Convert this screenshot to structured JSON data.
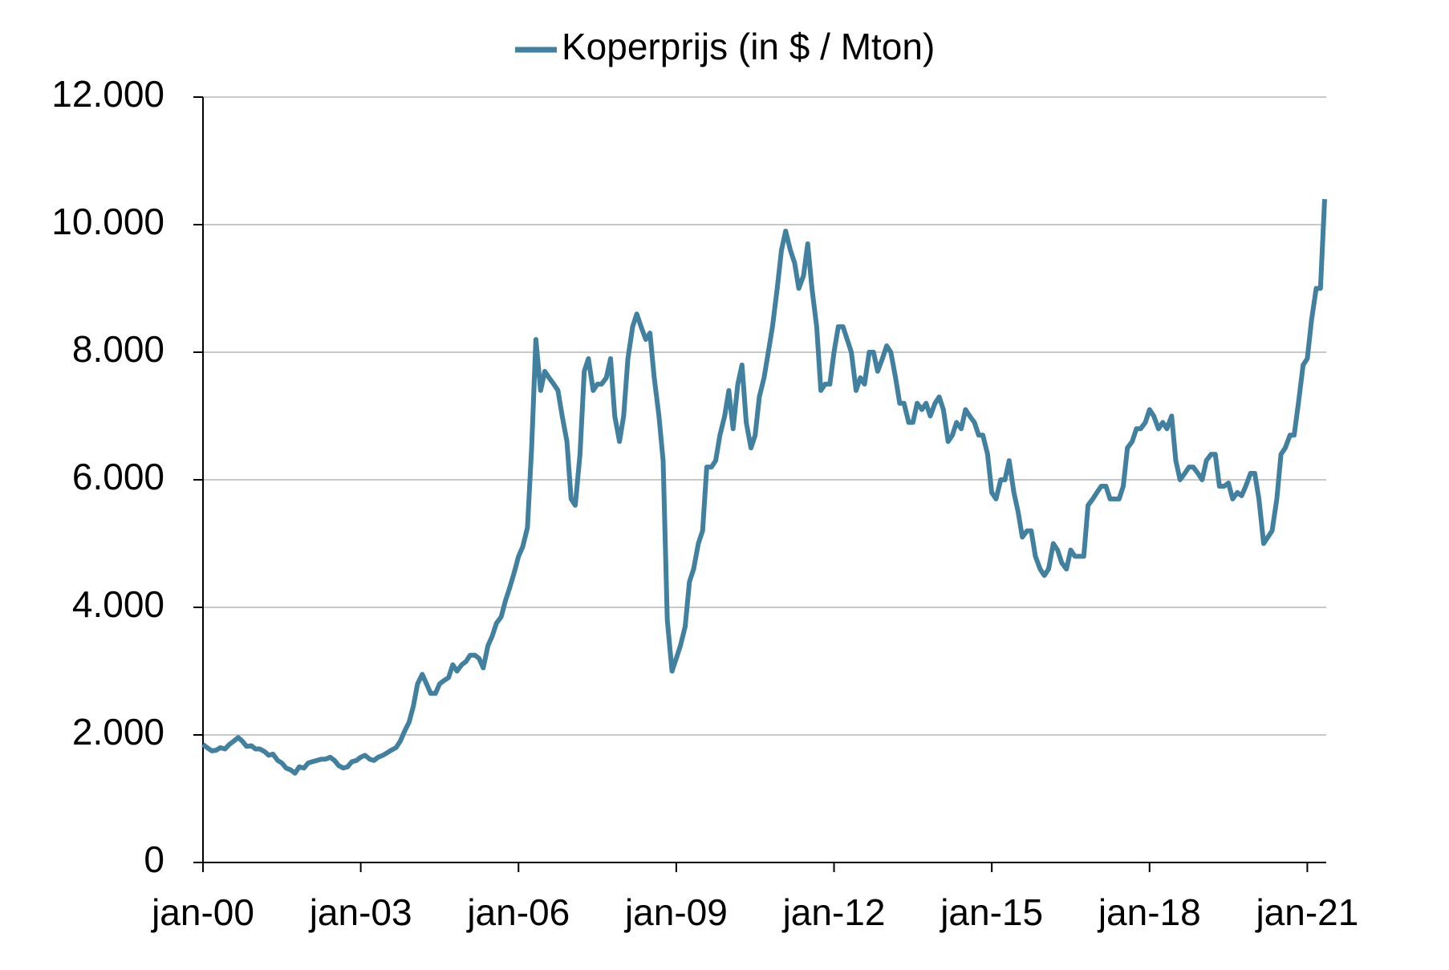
{
  "chart_data": {
    "type": "line",
    "x": [
      2000.0,
      2000.08,
      2000.17,
      2000.25,
      2000.33,
      2000.42,
      2000.5,
      2000.58,
      2000.67,
      2000.75,
      2000.83,
      2000.92,
      2001.0,
      2001.08,
      2001.17,
      2001.25,
      2001.33,
      2001.42,
      2001.5,
      2001.58,
      2001.67,
      2001.75,
      2001.83,
      2001.92,
      2002.0,
      2002.08,
      2002.17,
      2002.25,
      2002.33,
      2002.42,
      2002.5,
      2002.58,
      2002.67,
      2002.75,
      2002.83,
      2002.92,
      2003.0,
      2003.08,
      2003.17,
      2003.25,
      2003.33,
      2003.42,
      2003.5,
      2003.58,
      2003.67,
      2003.75,
      2003.83,
      2003.92,
      2004.0,
      2004.08,
      2004.17,
      2004.25,
      2004.33,
      2004.42,
      2004.5,
      2004.58,
      2004.67,
      2004.75,
      2004.83,
      2004.92,
      2005.0,
      2005.08,
      2005.17,
      2005.25,
      2005.33,
      2005.42,
      2005.5,
      2005.58,
      2005.67,
      2005.75,
      2005.83,
      2005.92,
      2006.0,
      2006.08,
      2006.17,
      2006.25,
      2006.33,
      2006.42,
      2006.5,
      2006.58,
      2006.67,
      2006.75,
      2006.83,
      2006.92,
      2007.0,
      2007.08,
      2007.17,
      2007.25,
      2007.33,
      2007.42,
      2007.5,
      2007.58,
      2007.67,
      2007.75,
      2007.83,
      2007.92,
      2008.0,
      2008.08,
      2008.17,
      2008.25,
      2008.33,
      2008.42,
      2008.5,
      2008.58,
      2008.67,
      2008.75,
      2008.83,
      2008.92,
      2009.0,
      2009.08,
      2009.17,
      2009.25,
      2009.33,
      2009.42,
      2009.5,
      2009.58,
      2009.67,
      2009.75,
      2009.83,
      2009.92,
      2010.0,
      2010.08,
      2010.17,
      2010.25,
      2010.33,
      2010.42,
      2010.5,
      2010.58,
      2010.67,
      2010.75,
      2010.83,
      2010.92,
      2011.0,
      2011.08,
      2011.17,
      2011.25,
      2011.33,
      2011.42,
      2011.5,
      2011.58,
      2011.67,
      2011.75,
      2011.83,
      2011.92,
      2012.0,
      2012.08,
      2012.17,
      2012.25,
      2012.33,
      2012.42,
      2012.5,
      2012.58,
      2012.67,
      2012.75,
      2012.83,
      2012.92,
      2013.0,
      2013.08,
      2013.17,
      2013.25,
      2013.33,
      2013.42,
      2013.5,
      2013.58,
      2013.67,
      2013.75,
      2013.83,
      2013.92,
      2014.0,
      2014.08,
      2014.17,
      2014.25,
      2014.33,
      2014.42,
      2014.5,
      2014.58,
      2014.67,
      2014.75,
      2014.83,
      2014.92,
      2015.0,
      2015.08,
      2015.17,
      2015.25,
      2015.33,
      2015.42,
      2015.5,
      2015.58,
      2015.67,
      2015.75,
      2015.83,
      2015.92,
      2016.0,
      2016.08,
      2016.17,
      2016.25,
      2016.33,
      2016.42,
      2016.5,
      2016.58,
      2016.67,
      2016.75,
      2016.83,
      2016.92,
      2017.0,
      2017.08,
      2017.17,
      2017.25,
      2017.33,
      2017.42,
      2017.5,
      2017.58,
      2017.67,
      2017.75,
      2017.83,
      2017.92,
      2018.0,
      2018.08,
      2018.17,
      2018.25,
      2018.33,
      2018.42,
      2018.5,
      2018.58,
      2018.67,
      2018.75,
      2018.83,
      2018.92,
      2019.0,
      2019.08,
      2019.17,
      2019.25,
      2019.33,
      2019.42,
      2019.5,
      2019.58,
      2019.67,
      2019.75,
      2019.83,
      2019.92,
      2020.0,
      2020.08,
      2020.17,
      2020.25,
      2020.33,
      2020.42,
      2020.5,
      2020.58,
      2020.67,
      2020.75,
      2020.83,
      2020.92,
      2021.0,
      2021.08,
      2021.17,
      2021.25,
      2021.33
    ],
    "series": [
      {
        "name": "Koperprijs (in $ / Mton)",
        "color": "#41809f",
        "values": [
          1850,
          1800,
          1750,
          1760,
          1800,
          1780,
          1850,
          1900,
          1960,
          1900,
          1820,
          1830,
          1780,
          1780,
          1740,
          1680,
          1700,
          1600,
          1560,
          1480,
          1450,
          1400,
          1500,
          1480,
          1560,
          1580,
          1600,
          1620,
          1620,
          1650,
          1600,
          1520,
          1480,
          1500,
          1580,
          1600,
          1650,
          1680,
          1620,
          1600,
          1650,
          1680,
          1720,
          1760,
          1800,
          1900,
          2050,
          2200,
          2450,
          2800,
          2950,
          2800,
          2650,
          2650,
          2800,
          2850,
          2900,
          3100,
          3000,
          3100,
          3150,
          3250,
          3250,
          3200,
          3050,
          3400,
          3550,
          3750,
          3850,
          4100,
          4300,
          4550,
          4800,
          4950,
          5250,
          6500,
          8200,
          7400,
          7700,
          7600,
          7500,
          7400,
          7000,
          6600,
          5700,
          5600,
          6400,
          7700,
          7900,
          7400,
          7500,
          7500,
          7600,
          7900,
          7000,
          6600,
          7000,
          7900,
          8400,
          8600,
          8400,
          8200,
          8300,
          7600,
          7000,
          6300,
          3800,
          3000,
          3200,
          3400,
          3700,
          4400,
          4600,
          5000,
          5200,
          6200,
          6200,
          6300,
          6700,
          7000,
          7400,
          6800,
          7500,
          7800,
          6900,
          6500,
          6700,
          7300,
          7600,
          8000,
          8400,
          9000,
          9600,
          9900,
          9600,
          9400,
          9000,
          9200,
          9700,
          9000,
          8400,
          7400,
          7500,
          7500,
          8000,
          8400,
          8400,
          8200,
          8000,
          7400,
          7600,
          7500,
          8000,
          8000,
          7700,
          7900,
          8100,
          8000,
          7600,
          7200,
          7200,
          6900,
          6900,
          7200,
          7100,
          7200,
          7000,
          7200,
          7300,
          7100,
          6600,
          6700,
          6900,
          6800,
          7100,
          7000,
          6900,
          6700,
          6700,
          6400,
          5800,
          5700,
          6000,
          6000,
          6300,
          5800,
          5500,
          5100,
          5200,
          5200,
          4800,
          4600,
          4500,
          4600,
          5000,
          4900,
          4700,
          4600,
          4900,
          4800,
          4800,
          4800,
          5600,
          5700,
          5800,
          5900,
          5900,
          5700,
          5700,
          5700,
          5900,
          6500,
          6600,
          6800,
          6800,
          6900,
          7100,
          7000,
          6800,
          6900,
          6800,
          7000,
          6300,
          6000,
          6100,
          6200,
          6200,
          6100,
          6000,
          6300,
          6400,
          6400,
          5900,
          5900,
          5950,
          5700,
          5800,
          5750,
          5900,
          6100,
          6100,
          5700,
          5000,
          5100,
          5200,
          5700,
          6400,
          6500,
          6700,
          6700,
          7200,
          7800,
          7900,
          8500,
          9000,
          9000,
          10400
        ]
      }
    ],
    "xlim": [
      2000,
      2021.36
    ],
    "xticks": [
      {
        "value": 2000,
        "label": "jan-00"
      },
      {
        "value": 2003,
        "label": "jan-03"
      },
      {
        "value": 2006,
        "label": "jan-06"
      },
      {
        "value": 2009,
        "label": "jan-09"
      },
      {
        "value": 2012,
        "label": "jan-12"
      },
      {
        "value": 2015,
        "label": "jan-15"
      },
      {
        "value": 2018,
        "label": "jan-18"
      },
      {
        "value": 2021,
        "label": "jan-21"
      }
    ],
    "ylim": [
      0,
      12000
    ],
    "yticks": [
      0,
      {
        "value": 2000,
        "label": "2.000"
      },
      {
        "value": 4000,
        "label": "4.000"
      },
      {
        "value": 6000,
        "label": "6.000"
      },
      {
        "value": 8000,
        "label": "8.000"
      },
      {
        "value": 10000,
        "label": "10.000"
      },
      {
        "value": 12000,
        "label": "12.000"
      }
    ],
    "grid": true,
    "legend": "top"
  }
}
